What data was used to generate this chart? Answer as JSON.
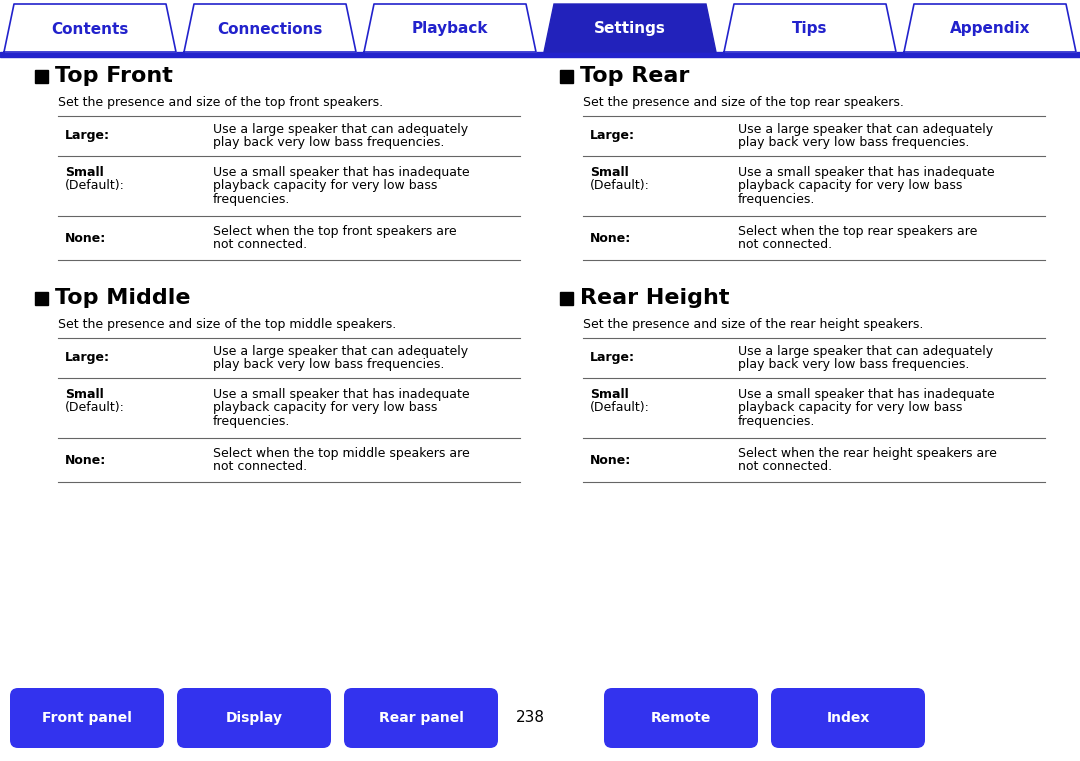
{
  "bg_color": "#ffffff",
  "tab_bar_color": "#2222cc",
  "tab_items": [
    "Contents",
    "Connections",
    "Playback",
    "Settings",
    "Tips",
    "Appendix"
  ],
  "tab_active_index": 3,
  "tab_active_bg": "#2222bb",
  "tab_active_fg": "#ffffff",
  "tab_inactive_bg": "#ffffff",
  "tab_inactive_fg": "#2222cc",
  "bottom_buttons": [
    "Front panel",
    "Display",
    "Rear panel",
    "Remote",
    "Index"
  ],
  "bottom_page_num": "238",
  "bottom_btn_color": "#3333ee",
  "bottom_btn_fg": "#ffffff",
  "sections": [
    {
      "title": "Top Front",
      "subtitle": "Set the presence and size of the top front speakers.",
      "rows": [
        {
          "label": "Large:",
          "label2": "",
          "text": "Use a large speaker that can adequately\nplay back very low bass frequencies."
        },
        {
          "label": "Small",
          "label2": "(Default):",
          "text": "Use a small speaker that has inadequate\nplayback capacity for very low bass\nfrequencies."
        },
        {
          "label": "None:",
          "label2": "",
          "text": "Select when the top front speakers are\nnot connected."
        }
      ],
      "col": 0,
      "row": 0
    },
    {
      "title": "Top Rear",
      "subtitle": "Set the presence and size of the top rear speakers.",
      "rows": [
        {
          "label": "Large:",
          "label2": "",
          "text": "Use a large speaker that can adequately\nplay back very low bass frequencies."
        },
        {
          "label": "Small",
          "label2": "(Default):",
          "text": "Use a small speaker that has inadequate\nplayback capacity for very low bass\nfrequencies."
        },
        {
          "label": "None:",
          "label2": "",
          "text": "Select when the top rear speakers are\nnot connected."
        }
      ],
      "col": 1,
      "row": 0
    },
    {
      "title": "Top Middle",
      "subtitle": "Set the presence and size of the top middle speakers.",
      "rows": [
        {
          "label": "Large:",
          "label2": "",
          "text": "Use a large speaker that can adequately\nplay back very low bass frequencies."
        },
        {
          "label": "Small",
          "label2": "(Default):",
          "text": "Use a small speaker that has inadequate\nplayback capacity for very low bass\nfrequencies."
        },
        {
          "label": "None:",
          "label2": "",
          "text": "Select when the top middle speakers are\nnot connected."
        }
      ],
      "col": 0,
      "row": 1
    },
    {
      "title": "Rear Height",
      "subtitle": "Set the presence and size of the rear height speakers.",
      "rows": [
        {
          "label": "Large:",
          "label2": "",
          "text": "Use a large speaker that can adequately\nplay back very low bass frequencies."
        },
        {
          "label": "Small",
          "label2": "(Default):",
          "text": "Use a small speaker that has inadequate\nplayback capacity for very low bass\nfrequencies."
        },
        {
          "label": "None:",
          "label2": "",
          "text": "Select when the rear height speakers are\nnot connected."
        }
      ],
      "col": 1,
      "row": 1
    }
  ]
}
